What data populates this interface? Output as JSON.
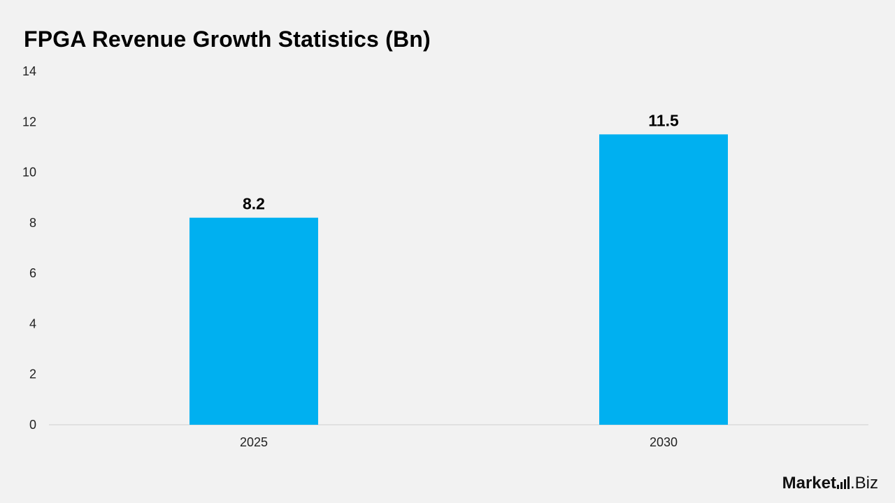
{
  "title": "FPGA Revenue Growth Statistics (Bn)",
  "logo": {
    "word": "Market",
    "suffix": ".Biz"
  },
  "colors": {
    "bar": "#00b0f0",
    "axis": "#d0d0d0",
    "background": "#f2f2f2"
  },
  "chart_data": {
    "type": "bar",
    "title": "FPGA Revenue Growth Statistics (Bn)",
    "categories": [
      "2025",
      "2030"
    ],
    "values": [
      8.2,
      11.5
    ],
    "data_labels": [
      "8.2",
      "11.5"
    ],
    "ylim": [
      0,
      14
    ],
    "yticks": [
      0,
      2,
      4,
      6,
      8,
      10,
      12,
      14
    ],
    "xlabel": "",
    "ylabel": "",
    "grid": false,
    "legend": "none"
  }
}
